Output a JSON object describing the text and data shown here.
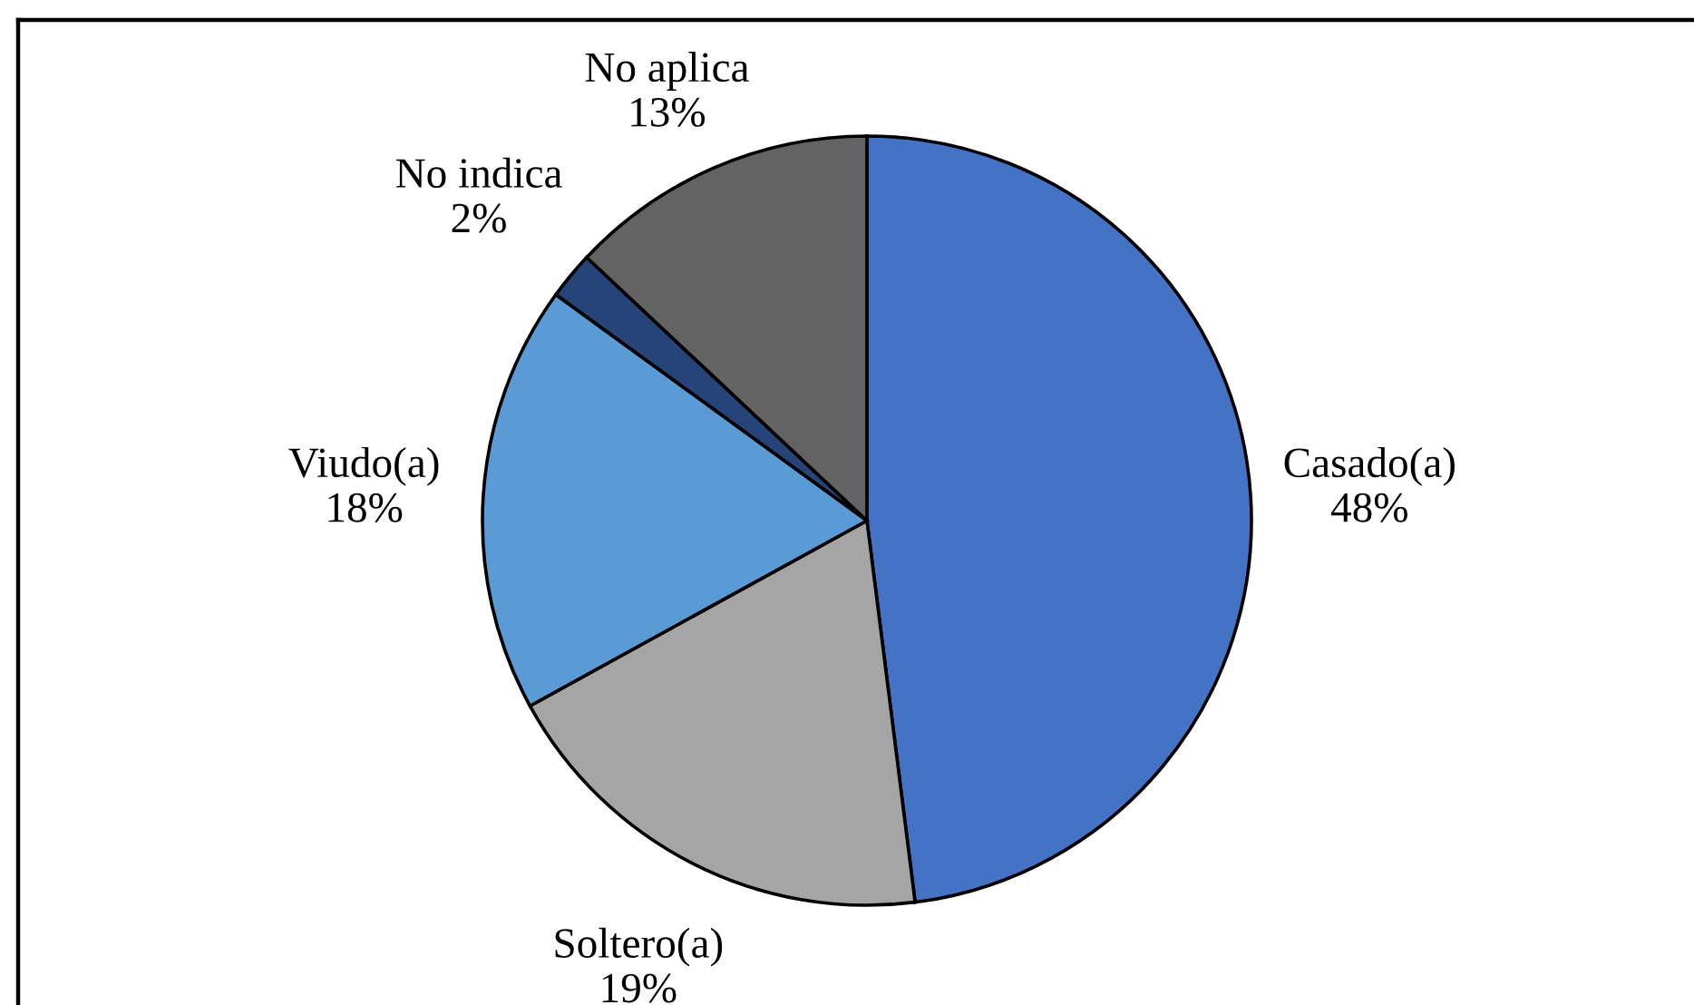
{
  "chart_data": {
    "type": "pie",
    "categories": [
      "Casado(a)",
      "Soltero(a)",
      "Viudo(a)",
      "No indica",
      "No aplica"
    ],
    "values": [
      48,
      19,
      18,
      2,
      13
    ],
    "colors": [
      "#4472c4",
      "#a5a5a5",
      "#5b9bd5",
      "#264478",
      "#636363"
    ],
    "value_labels": [
      "48%",
      "19%",
      "18%",
      "2%",
      "13%"
    ]
  }
}
